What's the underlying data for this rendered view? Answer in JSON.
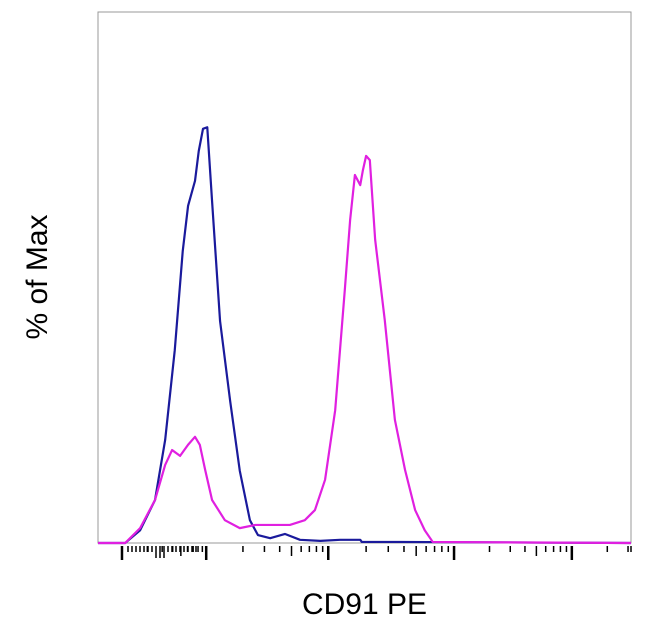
{
  "chart_data": {
    "type": "line",
    "title": "",
    "xlabel": "CD91 PE",
    "ylabel": "% of Max",
    "xlim": [
      0,
      1000
    ],
    "ylim": [
      0,
      100
    ],
    "grid": false,
    "legend": "none",
    "x_major_ticks": [
      45,
      203,
      432,
      668,
      889
    ],
    "series": [
      {
        "color": "#1a1a9c",
        "x": [
          0,
          51,
          79,
          107,
          126,
          144,
          159,
          169,
          182,
          189,
          197,
          205,
          214,
          229,
          248,
          266,
          285,
          300,
          323,
          351,
          379,
          417,
          454,
          492,
          495,
          567,
          1000
        ],
        "y": [
          0,
          0,
          2.4,
          8.1,
          19.4,
          36.3,
          55.0,
          63.5,
          68.2,
          73.8,
          78.0,
          78.3,
          64.4,
          41.8,
          26.7,
          13.6,
          4.3,
          1.5,
          0.9,
          1.7,
          0.6,
          0.4,
          0.6,
          0.6,
          0.2,
          0.2,
          0
        ]
      },
      {
        "color": "#e020e0",
        "x": [
          0,
          51,
          79,
          107,
          126,
          139,
          154,
          169,
          182,
          191,
          201,
          214,
          238,
          266,
          295,
          360,
          388,
          407,
          426,
          445,
          463,
          473,
          482,
          492,
          497,
          503,
          510,
          520,
          538,
          557,
          576,
          595,
          613,
          628,
          1000
        ],
        "y": [
          0,
          0,
          2.8,
          8.1,
          14.7,
          17.5,
          16.4,
          18.5,
          20.0,
          18.5,
          13.8,
          8.1,
          4.3,
          2.8,
          3.4,
          3.4,
          4.3,
          6.2,
          11.9,
          25.0,
          47.6,
          60.8,
          69.3,
          67.4,
          70.2,
          72.9,
          72.1,
          57.1,
          42.0,
          23.2,
          13.8,
          6.2,
          2.4,
          0.2,
          0
        ]
      }
    ]
  }
}
